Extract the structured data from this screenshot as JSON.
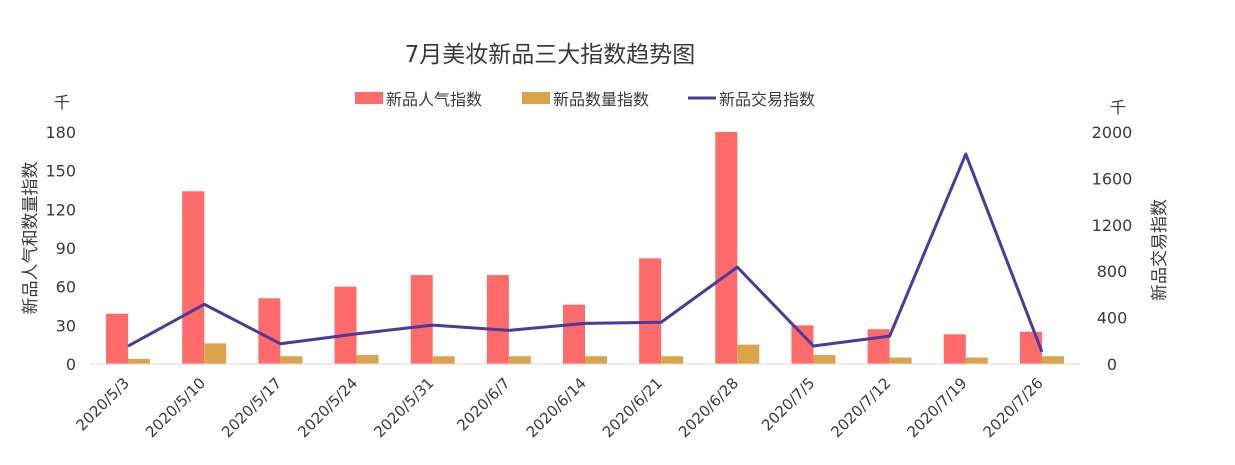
{
  "chart_data": {
    "type": "bar",
    "title": "7月美妆新品三大指数趋势图",
    "left_axis_label": "新品人气和数量指数",
    "right_axis_label": "新品交易指数",
    "left_unit": "千",
    "right_unit": "千",
    "categories": [
      "2020/5/3",
      "2020/5/10",
      "2020/5/17",
      "2020/5/24",
      "2020/5/31",
      "2020/6/7",
      "2020/6/14",
      "2020/6/21",
      "2020/6/28",
      "2020/7/5",
      "2020/7/12",
      "2020/7/19",
      "2020/7/26"
    ],
    "left_ticks": [
      "0",
      "30",
      "60",
      "90",
      "120",
      "150",
      "180"
    ],
    "right_ticks": [
      "0",
      "400",
      "800",
      "1200",
      "1600",
      "2000"
    ],
    "ylim_left": [
      0,
      180
    ],
    "ylim_right": [
      0,
      2000
    ],
    "legend_position": "top-center",
    "grid": false,
    "series": [
      {
        "name": "新品人气指数",
        "kind": "bar",
        "axis": "left",
        "color": "#ff6b6b",
        "values": [
          39,
          134,
          51,
          60,
          69,
          69,
          46,
          82,
          180,
          30,
          27,
          23,
          25
        ]
      },
      {
        "name": "新品数量指数",
        "kind": "bar",
        "axis": "left",
        "color": "#dba44a",
        "values": [
          4,
          16,
          6,
          7,
          6,
          6,
          6,
          6,
          15,
          7,
          5,
          5,
          6
        ]
      },
      {
        "name": "新品交易指数",
        "kind": "line",
        "axis": "right",
        "color": "#4b3b9a",
        "values": [
          155,
          515,
          175,
          260,
          335,
          290,
          350,
          360,
          835,
          155,
          240,
          1810,
          105
        ]
      }
    ]
  }
}
